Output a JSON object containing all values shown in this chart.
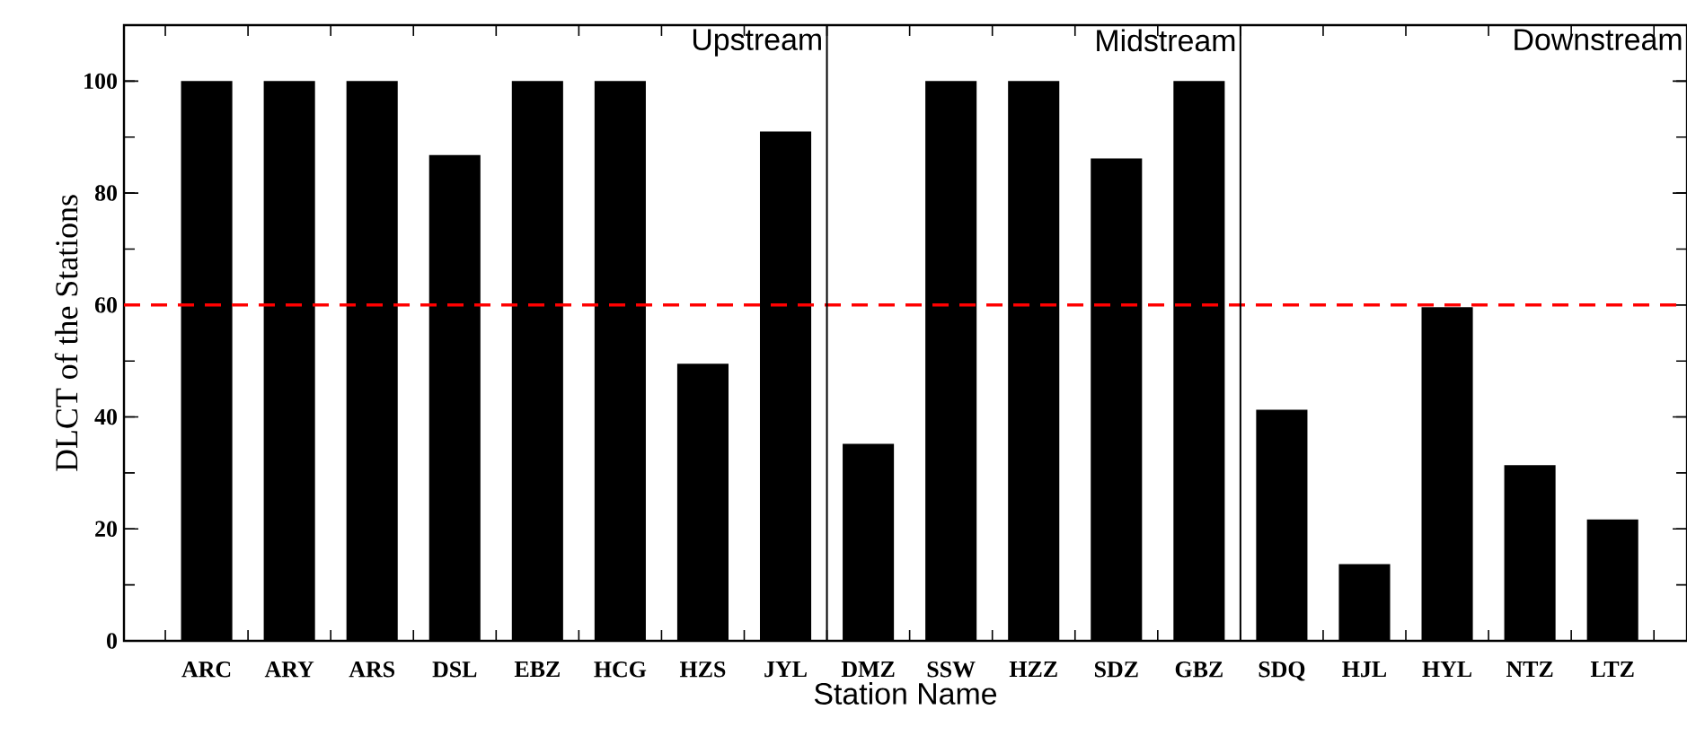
{
  "chart_data": {
    "type": "bar",
    "xlabel": "Station Name",
    "ylabel": "DLCT of the Stations",
    "categories": [
      "ARC",
      "ARY",
      "ARS",
      "DSL",
      "EBZ",
      "HCG",
      "HZS",
      "JYL",
      "DMZ",
      "SSW",
      "HZZ",
      "SDZ",
      "GBZ",
      "SDQ",
      "HJL",
      "HYL",
      "NTZ",
      "LTZ"
    ],
    "values": [
      100,
      100,
      100,
      86.8,
      100,
      100,
      49.5,
      91.0,
      35.2,
      100,
      100,
      86.2,
      100,
      41.3,
      13.7,
      59.6,
      31.4,
      21.7
    ],
    "color": "#000000",
    "ylim": [
      0,
      110
    ],
    "yticks": [
      0,
      20,
      40,
      60,
      80,
      100
    ],
    "ref_lines": [
      {
        "axis": "y",
        "value": 60,
        "color": "#ff0000",
        "line_style": "dashed"
      }
    ],
    "annotations": [
      "Upstream",
      "Midstream",
      "Downstream"
    ],
    "grid": false
  }
}
